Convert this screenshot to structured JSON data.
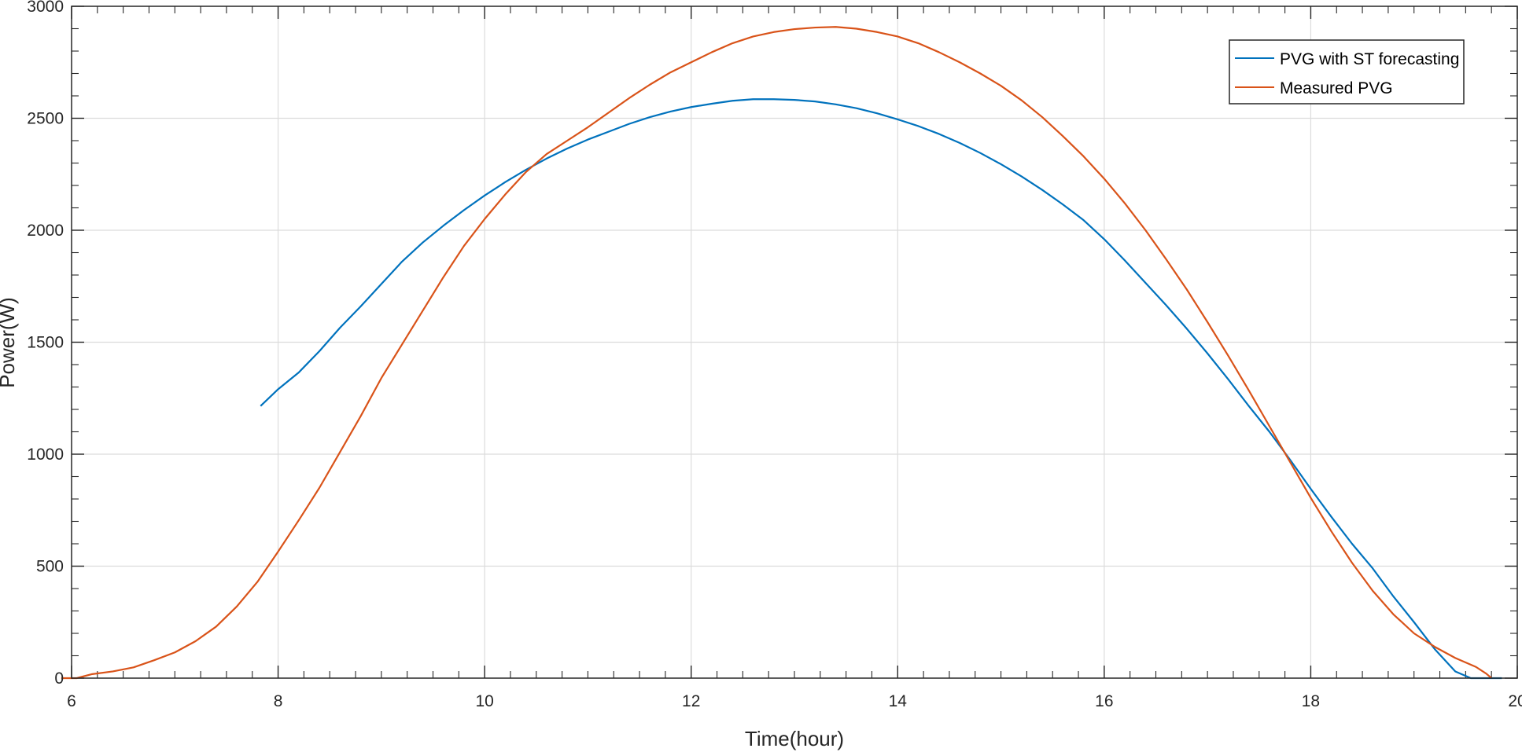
{
  "chart_data": {
    "type": "line",
    "xlabel": "Time(hour)",
    "ylabel": "Power(W)",
    "xlim": [
      6,
      20
    ],
    "ylim": [
      0,
      3000
    ],
    "xticks": [
      6,
      8,
      10,
      12,
      14,
      16,
      18,
      20
    ],
    "yticks": [
      0,
      500,
      1000,
      1500,
      2000,
      2500,
      3000
    ],
    "grid": true,
    "legend_position": "top-right",
    "series": [
      {
        "name": "PVG with ST forecasting",
        "color": "#0072BD",
        "points": [
          [
            7.83,
            1215
          ],
          [
            8.0,
            1290
          ],
          [
            8.2,
            1365
          ],
          [
            8.4,
            1460
          ],
          [
            8.6,
            1565
          ],
          [
            8.8,
            1660
          ],
          [
            9.0,
            1760
          ],
          [
            9.2,
            1860
          ],
          [
            9.4,
            1945
          ],
          [
            9.6,
            2020
          ],
          [
            9.8,
            2090
          ],
          [
            10.0,
            2155
          ],
          [
            10.2,
            2215
          ],
          [
            10.4,
            2270
          ],
          [
            10.6,
            2320
          ],
          [
            10.8,
            2365
          ],
          [
            11.0,
            2405
          ],
          [
            11.2,
            2440
          ],
          [
            11.4,
            2475
          ],
          [
            11.6,
            2505
          ],
          [
            11.8,
            2530
          ],
          [
            12.0,
            2550
          ],
          [
            12.2,
            2565
          ],
          [
            12.4,
            2578
          ],
          [
            12.6,
            2585
          ],
          [
            12.8,
            2585
          ],
          [
            13.0,
            2582
          ],
          [
            13.2,
            2575
          ],
          [
            13.4,
            2562
          ],
          [
            13.6,
            2545
          ],
          [
            13.8,
            2522
          ],
          [
            14.0,
            2495
          ],
          [
            14.2,
            2465
          ],
          [
            14.4,
            2430
          ],
          [
            14.6,
            2390
          ],
          [
            14.8,
            2345
          ],
          [
            15.0,
            2295
          ],
          [
            15.2,
            2240
          ],
          [
            15.4,
            2180
          ],
          [
            15.6,
            2115
          ],
          [
            15.8,
            2045
          ],
          [
            16.0,
            1960
          ],
          [
            16.2,
            1865
          ],
          [
            16.4,
            1765
          ],
          [
            16.6,
            1665
          ],
          [
            16.8,
            1560
          ],
          [
            17.0,
            1450
          ],
          [
            17.2,
            1335
          ],
          [
            17.4,
            1215
          ],
          [
            17.6,
            1100
          ],
          [
            17.8,
            975
          ],
          [
            18.0,
            845
          ],
          [
            18.2,
            720
          ],
          [
            18.4,
            600
          ],
          [
            18.6,
            490
          ],
          [
            18.8,
            365
          ],
          [
            19.0,
            250
          ],
          [
            19.2,
            130
          ],
          [
            19.4,
            30
          ],
          [
            19.55,
            0
          ],
          [
            19.85,
            0
          ]
        ]
      },
      {
        "name": "Measured PVG",
        "color": "#D95319",
        "points": [
          [
            5.9,
            0
          ],
          [
            6.05,
            0
          ],
          [
            6.2,
            18
          ],
          [
            6.4,
            30
          ],
          [
            6.6,
            48
          ],
          [
            6.8,
            80
          ],
          [
            7.0,
            115
          ],
          [
            7.2,
            165
          ],
          [
            7.4,
            230
          ],
          [
            7.6,
            320
          ],
          [
            7.8,
            430
          ],
          [
            8.0,
            565
          ],
          [
            8.2,
            705
          ],
          [
            8.4,
            850
          ],
          [
            8.6,
            1010
          ],
          [
            8.8,
            1170
          ],
          [
            9.0,
            1340
          ],
          [
            9.2,
            1490
          ],
          [
            9.4,
            1640
          ],
          [
            9.6,
            1790
          ],
          [
            9.8,
            1930
          ],
          [
            10.0,
            2050
          ],
          [
            10.2,
            2160
          ],
          [
            10.4,
            2260
          ],
          [
            10.6,
            2340
          ],
          [
            10.8,
            2400
          ],
          [
            11.0,
            2460
          ],
          [
            11.2,
            2525
          ],
          [
            11.4,
            2590
          ],
          [
            11.6,
            2650
          ],
          [
            11.8,
            2705
          ],
          [
            12.0,
            2750
          ],
          [
            12.2,
            2795
          ],
          [
            12.4,
            2835
          ],
          [
            12.6,
            2865
          ],
          [
            12.8,
            2885
          ],
          [
            13.0,
            2898
          ],
          [
            13.2,
            2905
          ],
          [
            13.4,
            2908
          ],
          [
            13.6,
            2900
          ],
          [
            13.8,
            2885
          ],
          [
            14.0,
            2865
          ],
          [
            14.2,
            2835
          ],
          [
            14.4,
            2795
          ],
          [
            14.6,
            2750
          ],
          [
            14.8,
            2700
          ],
          [
            15.0,
            2645
          ],
          [
            15.2,
            2580
          ],
          [
            15.4,
            2505
          ],
          [
            15.6,
            2420
          ],
          [
            15.8,
            2330
          ],
          [
            16.0,
            2230
          ],
          [
            16.2,
            2120
          ],
          [
            16.4,
            2000
          ],
          [
            16.6,
            1870
          ],
          [
            16.8,
            1735
          ],
          [
            17.0,
            1590
          ],
          [
            17.2,
            1440
          ],
          [
            17.4,
            1285
          ],
          [
            17.6,
            1125
          ],
          [
            17.8,
            965
          ],
          [
            18.0,
            805
          ],
          [
            18.2,
            655
          ],
          [
            18.4,
            515
          ],
          [
            18.6,
            390
          ],
          [
            18.8,
            285
          ],
          [
            19.0,
            200
          ],
          [
            19.2,
            140
          ],
          [
            19.4,
            90
          ],
          [
            19.6,
            50
          ],
          [
            19.7,
            20
          ],
          [
            19.75,
            0
          ]
        ]
      }
    ]
  }
}
